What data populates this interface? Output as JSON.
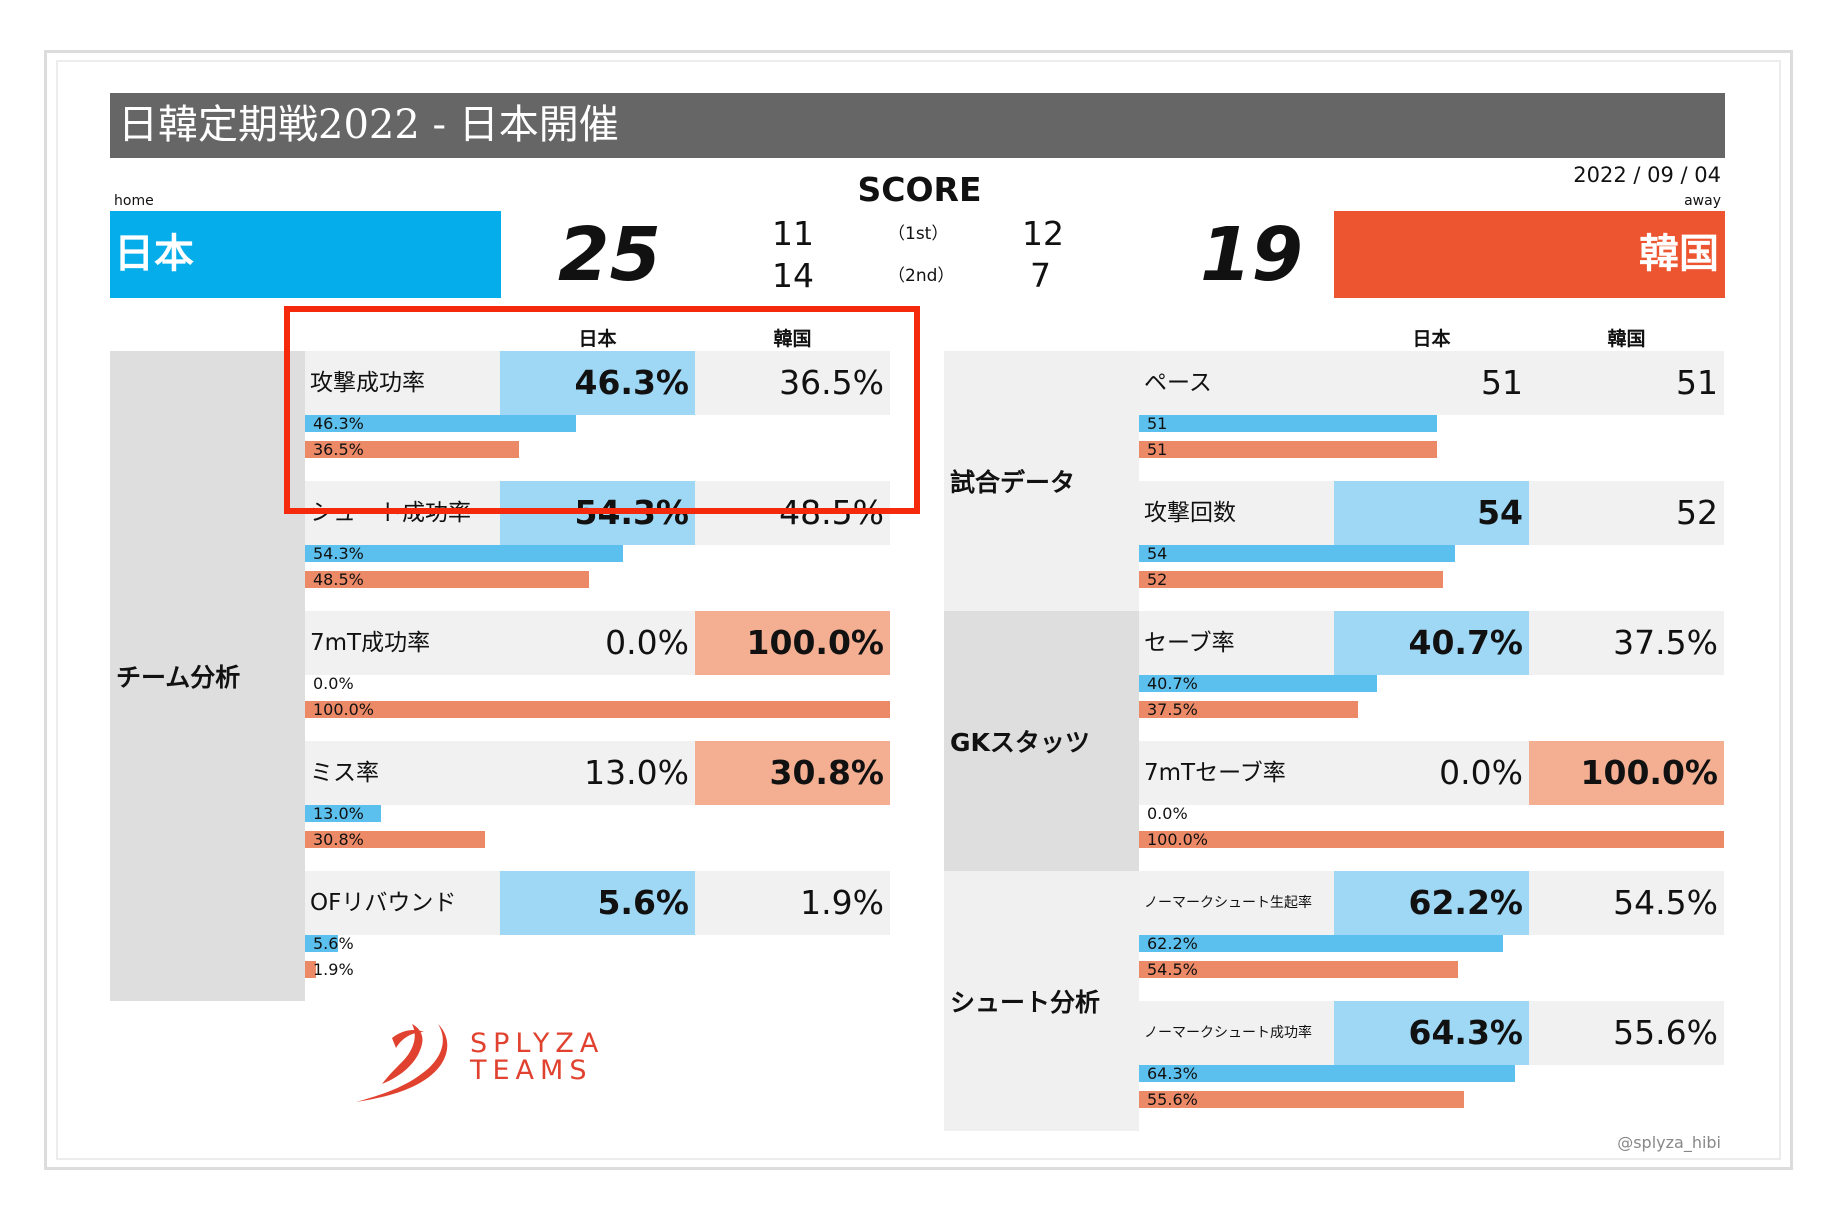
{
  "header": {
    "title": "日韓定期戦2022 - 日本開催",
    "score_label": "SCORE",
    "date": "2022 / 09 / 04",
    "home_label": "home",
    "away_label": "away"
  },
  "teams": {
    "home": {
      "name": "日本",
      "score": "25",
      "first": "11",
      "second": "14",
      "color": "#05adea"
    },
    "away": {
      "name": "韓国",
      "score": "19",
      "first": "12",
      "second": "7",
      "color": "#ec5530"
    }
  },
  "halves": {
    "first_label": "（1st）",
    "second_label": "（2nd）"
  },
  "columns": {
    "home": "日本",
    "away": "韓国"
  },
  "footer": {
    "brand_line1": "SPLYZA",
    "brand_line2": "TEAMS",
    "handle": "@splyza_hibi"
  },
  "colors": {
    "home_bar": "#5bc0ee",
    "away_bar": "#ec8a68",
    "home_highlight": "#9fd8f5",
    "away_highlight": "#f4af92",
    "annotation": "#f52a0c"
  },
  "chart_data": [
    {
      "type": "bar",
      "section": "チーム分析",
      "unit": "%",
      "series_names": [
        "日本",
        "韓国"
      ],
      "metrics": [
        {
          "label": "攻撃成功率",
          "home": 46.3,
          "away": 36.5,
          "home_text": "46.3%",
          "away_text": "36.5%"
        },
        {
          "label": "シュート成功率",
          "home": 54.3,
          "away": 48.5,
          "home_text": "54.3%",
          "away_text": "48.5%"
        },
        {
          "label": "7mT成功率",
          "home": 0.0,
          "away": 100.0,
          "home_text": "0.0%",
          "away_text": "100.0%"
        },
        {
          "label": "ミス率",
          "home": 13.0,
          "away": 30.8,
          "home_text": "13.0%",
          "away_text": "30.8%"
        },
        {
          "label": "OFリバウンド",
          "home": 5.6,
          "away": 1.9,
          "home_text": "5.6%",
          "away_text": "1.9%"
        }
      ]
    },
    {
      "type": "bar",
      "section": "試合データ",
      "series_names": [
        "日本",
        "韓国"
      ],
      "metrics": [
        {
          "label": "ペース",
          "home": 51,
          "away": 51,
          "home_text": "51",
          "away_text": "51"
        },
        {
          "label": "攻撃回数",
          "home": 54,
          "away": 52,
          "home_text": "54",
          "away_text": "52"
        }
      ]
    },
    {
      "type": "bar",
      "section": "GKスタッツ",
      "unit": "%",
      "series_names": [
        "日本",
        "韓国"
      ],
      "metrics": [
        {
          "label": "セーブ率",
          "home": 40.7,
          "away": 37.5,
          "home_text": "40.7%",
          "away_text": "37.5%"
        },
        {
          "label": "7mTセーブ率",
          "home": 0.0,
          "away": 100.0,
          "home_text": "0.0%",
          "away_text": "100.0%"
        }
      ]
    },
    {
      "type": "bar",
      "section": "シュート分析",
      "unit": "%",
      "series_names": [
        "日本",
        "韓国"
      ],
      "metrics": [
        {
          "label": "ノーマークシュート生起率",
          "home": 62.2,
          "away": 54.5,
          "home_text": "62.2%",
          "away_text": "54.5%"
        },
        {
          "label": "ノーマークシュート成功率",
          "home": 64.3,
          "away": 55.6,
          "home_text": "64.3%",
          "away_text": "55.6%"
        }
      ]
    }
  ]
}
